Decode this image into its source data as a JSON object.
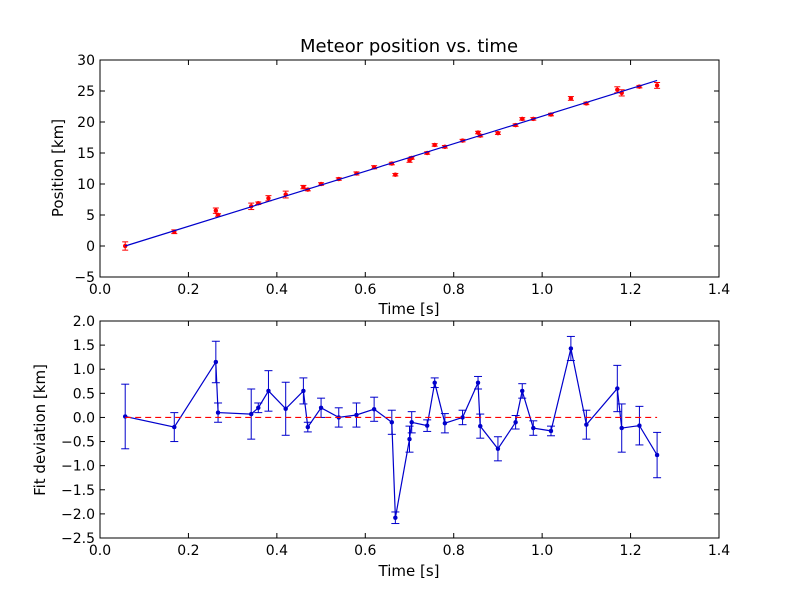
{
  "chart_data": [
    {
      "type": "scatter",
      "title": "Meteor position vs. time",
      "xlabel": "Time [s]",
      "ylabel": "Position [km]",
      "xlim": [
        0.0,
        1.4
      ],
      "ylim": [
        -5,
        30
      ],
      "xticks": [
        "0.0",
        "0.2",
        "0.4",
        "0.6",
        "0.8",
        "1.0",
        "1.2",
        "1.4"
      ],
      "yticks": [
        "−5",
        "0",
        "5",
        "10",
        "15",
        "20",
        "25",
        "30"
      ],
      "series": [
        {
          "kind": "points-with-errorbars",
          "color": "#ff0000",
          "x": [
            0.057,
            0.168,
            0.262,
            0.267,
            0.342,
            0.358,
            0.381,
            0.42,
            0.46,
            0.47,
            0.5,
            0.54,
            0.58,
            0.62,
            0.66,
            0.668,
            0.7,
            0.705,
            0.74,
            0.757,
            0.78,
            0.82,
            0.855,
            0.86,
            0.9,
            0.94,
            0.955,
            0.98,
            1.02,
            1.065,
            1.1,
            1.17,
            1.18,
            1.22,
            1.26
          ],
          "y": [
            0.0,
            2.3,
            5.7,
            5.0,
            6.4,
            6.9,
            7.7,
            8.3,
            9.5,
            9.1,
            10.0,
            10.8,
            11.7,
            12.7,
            13.3,
            11.5,
            13.8,
            14.2,
            15.0,
            16.3,
            16.0,
            17.0,
            18.3,
            17.8,
            18.2,
            19.5,
            20.5,
            20.5,
            21.2,
            23.8,
            23.0,
            25.2,
            24.7,
            25.7,
            25.9
          ],
          "yerr": [
            0.67,
            0.3,
            0.43,
            0.2,
            0.52,
            0.2,
            0.42,
            0.55,
            0.27,
            0.2,
            0.2,
            0.2,
            0.25,
            0.25,
            0.2,
            0.2,
            0.3,
            0.2,
            0.2,
            0.2,
            0.2,
            0.2,
            0.2,
            0.2,
            0.2,
            0.2,
            0.2,
            0.2,
            0.2,
            0.3,
            0.2,
            0.48,
            0.5,
            0.2,
            0.47
          ]
        },
        {
          "kind": "fit-line",
          "color": "#0000cc",
          "x": [
            0.057,
            1.26
          ],
          "y": [
            0.0,
            26.7
          ]
        }
      ]
    },
    {
      "type": "line",
      "title": "",
      "xlabel": "Time [s]",
      "ylabel": "Fit deviation [km]",
      "xlim": [
        0.0,
        1.4
      ],
      "ylim": [
        -2.5,
        2.0
      ],
      "xticks": [
        "0.0",
        "0.2",
        "0.4",
        "0.6",
        "0.8",
        "1.0",
        "1.2",
        "1.4"
      ],
      "yticks": [
        "−2.5",
        "−2.0",
        "−1.5",
        "−1.0",
        "−0.5",
        "0.0",
        "0.5",
        "1.0",
        "1.5",
        "2.0"
      ],
      "series": [
        {
          "kind": "line-with-errorbars",
          "color": "#0000cc",
          "x": [
            0.057,
            0.168,
            0.262,
            0.267,
            0.342,
            0.358,
            0.381,
            0.42,
            0.46,
            0.47,
            0.5,
            0.54,
            0.58,
            0.62,
            0.66,
            0.668,
            0.7,
            0.705,
            0.74,
            0.757,
            0.78,
            0.82,
            0.855,
            0.86,
            0.9,
            0.94,
            0.955,
            0.98,
            1.02,
            1.065,
            1.1,
            1.17,
            1.18,
            1.22,
            1.26
          ],
          "y": [
            0.02,
            -0.2,
            1.15,
            0.1,
            0.07,
            0.2,
            0.55,
            0.18,
            0.55,
            -0.2,
            0.2,
            0.0,
            0.05,
            0.17,
            -0.1,
            -2.08,
            -0.45,
            -0.1,
            -0.17,
            0.72,
            -0.12,
            0.0,
            0.72,
            -0.18,
            -0.65,
            -0.1,
            0.55,
            -0.22,
            -0.28,
            1.43,
            -0.15,
            0.6,
            -0.22,
            -0.17,
            -0.78
          ],
          "yerr": [
            0.67,
            0.3,
            0.43,
            0.2,
            0.52,
            0.1,
            0.42,
            0.55,
            0.27,
            0.1,
            0.2,
            0.2,
            0.25,
            0.25,
            0.25,
            0.12,
            0.27,
            0.22,
            0.12,
            0.1,
            0.2,
            0.15,
            0.13,
            0.25,
            0.25,
            0.14,
            0.15,
            0.15,
            0.1,
            0.25,
            0.3,
            0.48,
            0.5,
            0.4,
            0.47
          ]
        },
        {
          "kind": "zero-reference",
          "color": "#ff0000",
          "dash": "dashed",
          "x": [
            0.057,
            1.26
          ],
          "y": [
            0.0,
            0.0
          ]
        }
      ]
    }
  ]
}
